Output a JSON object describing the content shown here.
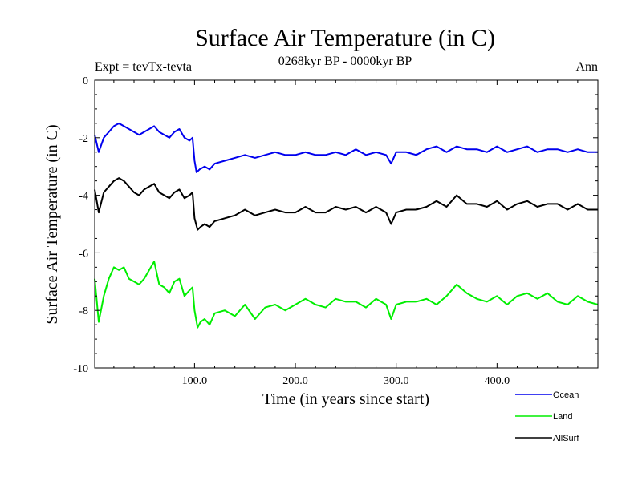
{
  "chart_data": {
    "type": "line",
    "title": "Surface Air Temperature (in C)",
    "subtitle": "0268kyr BP - 0000kyr BP",
    "top_left_label": "Expt = tevTx-tevta",
    "top_right_label": "Ann",
    "xlabel": "Time (in years since start)",
    "ylabel": "Surface Air Temperature (in C)",
    "xlim": [
      1,
      500
    ],
    "ylim": [
      -10,
      0
    ],
    "x_ticks": [
      100,
      200,
      300,
      400
    ],
    "x_tick_labels": [
      "100.0",
      "200.0",
      "300.0",
      "400.0"
    ],
    "y_ticks": [
      -10,
      -8,
      -6,
      -4,
      -2,
      0
    ],
    "y_tick_labels": [
      "-10",
      "-8",
      "-6",
      "-4",
      "-2",
      "0"
    ],
    "grid": false,
    "legend_position": "bottom-right",
    "series": [
      {
        "name": "Ocean",
        "color": "#0000ee",
        "points": [
          [
            1,
            -1.9
          ],
          [
            5,
            -2.5
          ],
          [
            10,
            -2.0
          ],
          [
            15,
            -1.8
          ],
          [
            20,
            -1.6
          ],
          [
            25,
            -1.5
          ],
          [
            30,
            -1.6
          ],
          [
            35,
            -1.7
          ],
          [
            40,
            -1.8
          ],
          [
            45,
            -1.9
          ],
          [
            50,
            -1.8
          ],
          [
            55,
            -1.7
          ],
          [
            60,
            -1.6
          ],
          [
            65,
            -1.8
          ],
          [
            70,
            -1.9
          ],
          [
            75,
            -2.0
          ],
          [
            80,
            -1.8
          ],
          [
            85,
            -1.7
          ],
          [
            90,
            -2.0
          ],
          [
            95,
            -2.1
          ],
          [
            98,
            -2.0
          ],
          [
            100,
            -2.8
          ],
          [
            102,
            -3.2
          ],
          [
            105,
            -3.1
          ],
          [
            110,
            -3.0
          ],
          [
            115,
            -3.1
          ],
          [
            120,
            -2.9
          ],
          [
            130,
            -2.8
          ],
          [
            140,
            -2.7
          ],
          [
            150,
            -2.6
          ],
          [
            160,
            -2.7
          ],
          [
            170,
            -2.6
          ],
          [
            180,
            -2.5
          ],
          [
            190,
            -2.6
          ],
          [
            200,
            -2.6
          ],
          [
            210,
            -2.5
          ],
          [
            220,
            -2.6
          ],
          [
            230,
            -2.6
          ],
          [
            240,
            -2.5
          ],
          [
            250,
            -2.6
          ],
          [
            260,
            -2.4
          ],
          [
            270,
            -2.6
          ],
          [
            280,
            -2.5
          ],
          [
            290,
            -2.6
          ],
          [
            295,
            -2.9
          ],
          [
            300,
            -2.5
          ],
          [
            310,
            -2.5
          ],
          [
            320,
            -2.6
          ],
          [
            330,
            -2.4
          ],
          [
            340,
            -2.3
          ],
          [
            350,
            -2.5
          ],
          [
            360,
            -2.3
          ],
          [
            370,
            -2.4
          ],
          [
            380,
            -2.4
          ],
          [
            390,
            -2.5
          ],
          [
            400,
            -2.3
          ],
          [
            410,
            -2.5
          ],
          [
            420,
            -2.4
          ],
          [
            430,
            -2.3
          ],
          [
            440,
            -2.5
          ],
          [
            450,
            -2.4
          ],
          [
            460,
            -2.4
          ],
          [
            470,
            -2.5
          ],
          [
            480,
            -2.4
          ],
          [
            490,
            -2.5
          ],
          [
            500,
            -2.5
          ]
        ]
      },
      {
        "name": "Land",
        "color": "#00ee00",
        "points": [
          [
            1,
            -6.9
          ],
          [
            5,
            -8.4
          ],
          [
            10,
            -7.5
          ],
          [
            15,
            -6.9
          ],
          [
            20,
            -6.5
          ],
          [
            25,
            -6.6
          ],
          [
            30,
            -6.5
          ],
          [
            35,
            -6.9
          ],
          [
            40,
            -7.0
          ],
          [
            45,
            -7.1
          ],
          [
            50,
            -6.9
          ],
          [
            55,
            -6.6
          ],
          [
            60,
            -6.3
          ],
          [
            65,
            -7.1
          ],
          [
            70,
            -7.2
          ],
          [
            75,
            -7.4
          ],
          [
            80,
            -7.0
          ],
          [
            85,
            -6.9
          ],
          [
            90,
            -7.5
          ],
          [
            95,
            -7.3
          ],
          [
            98,
            -7.2
          ],
          [
            100,
            -8.0
          ],
          [
            103,
            -8.6
          ],
          [
            106,
            -8.4
          ],
          [
            110,
            -8.3
          ],
          [
            115,
            -8.5
          ],
          [
            120,
            -8.1
          ],
          [
            130,
            -8.0
          ],
          [
            140,
            -8.2
          ],
          [
            150,
            -7.8
          ],
          [
            160,
            -8.3
          ],
          [
            170,
            -7.9
          ],
          [
            180,
            -7.8
          ],
          [
            190,
            -8.0
          ],
          [
            200,
            -7.8
          ],
          [
            210,
            -7.6
          ],
          [
            220,
            -7.8
          ],
          [
            230,
            -7.9
          ],
          [
            240,
            -7.6
          ],
          [
            250,
            -7.7
          ],
          [
            260,
            -7.7
          ],
          [
            270,
            -7.9
          ],
          [
            280,
            -7.6
          ],
          [
            290,
            -7.8
          ],
          [
            295,
            -8.3
          ],
          [
            300,
            -7.8
          ],
          [
            310,
            -7.7
          ],
          [
            320,
            -7.7
          ],
          [
            330,
            -7.6
          ],
          [
            340,
            -7.8
          ],
          [
            350,
            -7.5
          ],
          [
            360,
            -7.1
          ],
          [
            370,
            -7.4
          ],
          [
            380,
            -7.6
          ],
          [
            390,
            -7.7
          ],
          [
            400,
            -7.5
          ],
          [
            410,
            -7.8
          ],
          [
            420,
            -7.5
          ],
          [
            430,
            -7.4
          ],
          [
            440,
            -7.6
          ],
          [
            450,
            -7.4
          ],
          [
            460,
            -7.7
          ],
          [
            470,
            -7.8
          ],
          [
            480,
            -7.5
          ],
          [
            490,
            -7.7
          ],
          [
            500,
            -7.8
          ]
        ]
      },
      {
        "name": "AllSurf",
        "color": "#000000",
        "points": [
          [
            1,
            -3.8
          ],
          [
            5,
            -4.6
          ],
          [
            10,
            -3.9
          ],
          [
            15,
            -3.7
          ],
          [
            20,
            -3.5
          ],
          [
            25,
            -3.4
          ],
          [
            30,
            -3.5
          ],
          [
            35,
            -3.7
          ],
          [
            40,
            -3.9
          ],
          [
            45,
            -4.0
          ],
          [
            50,
            -3.8
          ],
          [
            55,
            -3.7
          ],
          [
            60,
            -3.6
          ],
          [
            65,
            -3.9
          ],
          [
            70,
            -4.0
          ],
          [
            75,
            -4.1
          ],
          [
            80,
            -3.9
          ],
          [
            85,
            -3.8
          ],
          [
            90,
            -4.1
          ],
          [
            95,
            -4.0
          ],
          [
            98,
            -3.9
          ],
          [
            100,
            -4.8
          ],
          [
            103,
            -5.2
          ],
          [
            106,
            -5.1
          ],
          [
            110,
            -5.0
          ],
          [
            115,
            -5.1
          ],
          [
            120,
            -4.9
          ],
          [
            130,
            -4.8
          ],
          [
            140,
            -4.7
          ],
          [
            150,
            -4.5
          ],
          [
            160,
            -4.7
          ],
          [
            170,
            -4.6
          ],
          [
            180,
            -4.5
          ],
          [
            190,
            -4.6
          ],
          [
            200,
            -4.6
          ],
          [
            210,
            -4.4
          ],
          [
            220,
            -4.6
          ],
          [
            230,
            -4.6
          ],
          [
            240,
            -4.4
          ],
          [
            250,
            -4.5
          ],
          [
            260,
            -4.4
          ],
          [
            270,
            -4.6
          ],
          [
            280,
            -4.4
          ],
          [
            290,
            -4.6
          ],
          [
            295,
            -5.0
          ],
          [
            300,
            -4.6
          ],
          [
            310,
            -4.5
          ],
          [
            320,
            -4.5
          ],
          [
            330,
            -4.4
          ],
          [
            340,
            -4.2
          ],
          [
            350,
            -4.4
          ],
          [
            360,
            -4.0
          ],
          [
            370,
            -4.3
          ],
          [
            380,
            -4.3
          ],
          [
            390,
            -4.4
          ],
          [
            400,
            -4.2
          ],
          [
            410,
            -4.5
          ],
          [
            420,
            -4.3
          ],
          [
            430,
            -4.2
          ],
          [
            440,
            -4.4
          ],
          [
            450,
            -4.3
          ],
          [
            460,
            -4.3
          ],
          [
            470,
            -4.5
          ],
          [
            480,
            -4.3
          ],
          [
            490,
            -4.5
          ],
          [
            500,
            -4.5
          ]
        ]
      }
    ]
  }
}
